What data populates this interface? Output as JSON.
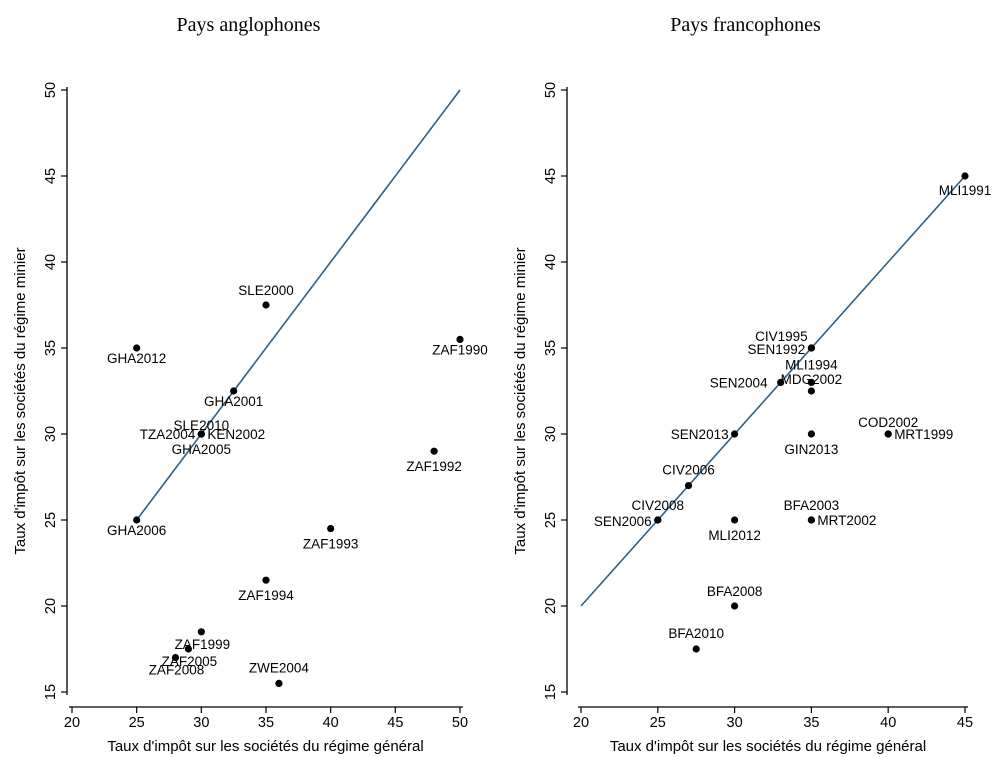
{
  "chart_data": [
    {
      "type": "scatter",
      "title": "Pays anglophones",
      "xlabel": "Taux d'impôt sur les sociétés du régime général",
      "ylabel": "Taux d'impôt sur les sociétés du régime minier",
      "xlim": [
        20,
        50
      ],
      "ylim": [
        15,
        50
      ],
      "xticks": [
        "20",
        "25",
        "30",
        "35",
        "40",
        "45",
        "50"
      ],
      "yticks": [
        "15",
        "20",
        "25",
        "30",
        "35",
        "40",
        "45",
        "50"
      ],
      "reference_line": {
        "from": [
          25,
          25
        ],
        "to": [
          50,
          50
        ],
        "color": "#2e5f86"
      },
      "grid": false,
      "points": [
        {
          "label": "SLE2000",
          "x": 35,
          "y": 37.5
        },
        {
          "label": "GHA2012",
          "x": 25,
          "y": 35
        },
        {
          "label": "ZAF1990",
          "x": 50,
          "y": 35.5
        },
        {
          "label": "GHA2001",
          "x": 32.5,
          "y": 32.5
        },
        {
          "label": "SLE2010",
          "x": 30,
          "y": 30
        },
        {
          "label": "TZA2004",
          "x": 30,
          "y": 30
        },
        {
          "label": "KEN2002",
          "x": 30,
          "y": 30
        },
        {
          "label": "GHA2005",
          "x": 30,
          "y": 30
        },
        {
          "label": "ZAF1992",
          "x": 48,
          "y": 29
        },
        {
          "label": "GHA2006",
          "x": 25,
          "y": 25
        },
        {
          "label": "ZAF1993",
          "x": 40,
          "y": 24.5
        },
        {
          "label": "ZAF1994",
          "x": 35,
          "y": 21.5
        },
        {
          "label": "ZAF1999",
          "x": 30,
          "y": 18.5
        },
        {
          "label": "ZAF2005",
          "x": 29,
          "y": 17.5
        },
        {
          "label": "ZAF2008",
          "x": 28,
          "y": 17
        },
        {
          "label": "ZWE2004",
          "x": 36,
          "y": 15.5
        }
      ]
    },
    {
      "type": "scatter",
      "title": "Pays francophones",
      "xlabel": "Taux d'impôt sur les sociétés du régime général",
      "ylabel": "Taux d'impôt sur les sociétés du régime minier",
      "xlim": [
        20,
        45
      ],
      "ylim": [
        15,
        50
      ],
      "xticks": [
        "20",
        "25",
        "30",
        "35",
        "40",
        "45"
      ],
      "yticks": [
        "15",
        "20",
        "25",
        "30",
        "35",
        "40",
        "45",
        "50"
      ],
      "reference_line": {
        "from": [
          20,
          20
        ],
        "to": [
          45,
          45
        ],
        "color": "#2e5f86"
      },
      "grid": false,
      "points": [
        {
          "label": "MLI1991",
          "x": 45,
          "y": 45
        },
        {
          "label": "CIV1995",
          "x": 35,
          "y": 35
        },
        {
          "label": "SEN1992",
          "x": 35,
          "y": 35
        },
        {
          "label": "MLI1994",
          "x": 35,
          "y": 33
        },
        {
          "label": "SEN2004",
          "x": 33,
          "y": 33
        },
        {
          "label": "MDG2002",
          "x": 35,
          "y": 32.5
        },
        {
          "label": "SEN2013",
          "x": 30,
          "y": 30
        },
        {
          "label": "COD2002",
          "x": 40,
          "y": 30
        },
        {
          "label": "MRT1999",
          "x": 40,
          "y": 30
        },
        {
          "label": "GIN2013",
          "x": 35,
          "y": 30
        },
        {
          "label": "CIV2006",
          "x": 27,
          "y": 27
        },
        {
          "label": "CIV2008",
          "x": 25,
          "y": 25
        },
        {
          "label": "SEN2006",
          "x": 25,
          "y": 25
        },
        {
          "label": "MLI2012",
          "x": 30,
          "y": 25
        },
        {
          "label": "BFA2003",
          "x": 35,
          "y": 25
        },
        {
          "label": "MRT2002",
          "x": 35,
          "y": 25
        },
        {
          "label": "BFA2008",
          "x": 30,
          "y": 20
        },
        {
          "label": "BFA2010",
          "x": 27.5,
          "y": 17.5
        }
      ]
    }
  ]
}
